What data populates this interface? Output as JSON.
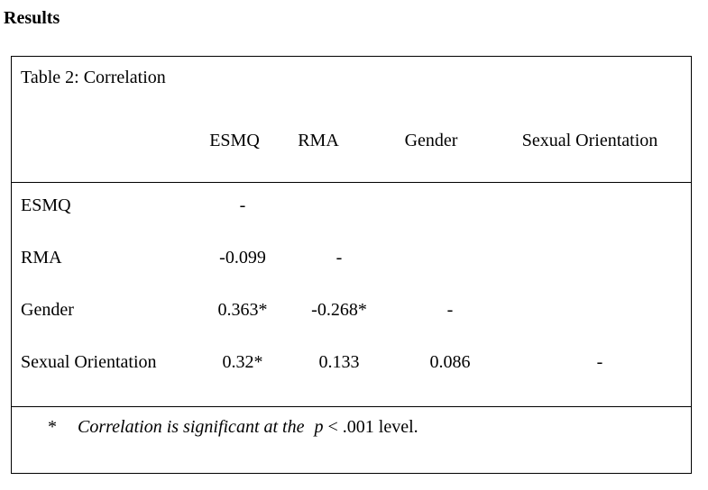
{
  "heading": "Results",
  "table": {
    "caption": "Table 2: Correlation",
    "columns": [
      "ESMQ",
      "RMA",
      "Gender",
      "Sexual Orientation"
    ],
    "rows": [
      {
        "label": "ESMQ",
        "values": [
          "-",
          "",
          "",
          ""
        ]
      },
      {
        "label": "RMA",
        "values": [
          "-0.099",
          "-",
          "",
          ""
        ]
      },
      {
        "label": "Gender",
        "values": [
          "0.363*",
          "-0.268*",
          "-",
          ""
        ]
      },
      {
        "label": "Sexual Orientation",
        "values": [
          "0.32*",
          "0.133",
          "0.086",
          "-"
        ]
      }
    ]
  },
  "footnote": {
    "marker": "*",
    "italic_text": "Correlation is significant at the",
    "p_symbol": "p",
    "rest": "< .001 level."
  }
}
